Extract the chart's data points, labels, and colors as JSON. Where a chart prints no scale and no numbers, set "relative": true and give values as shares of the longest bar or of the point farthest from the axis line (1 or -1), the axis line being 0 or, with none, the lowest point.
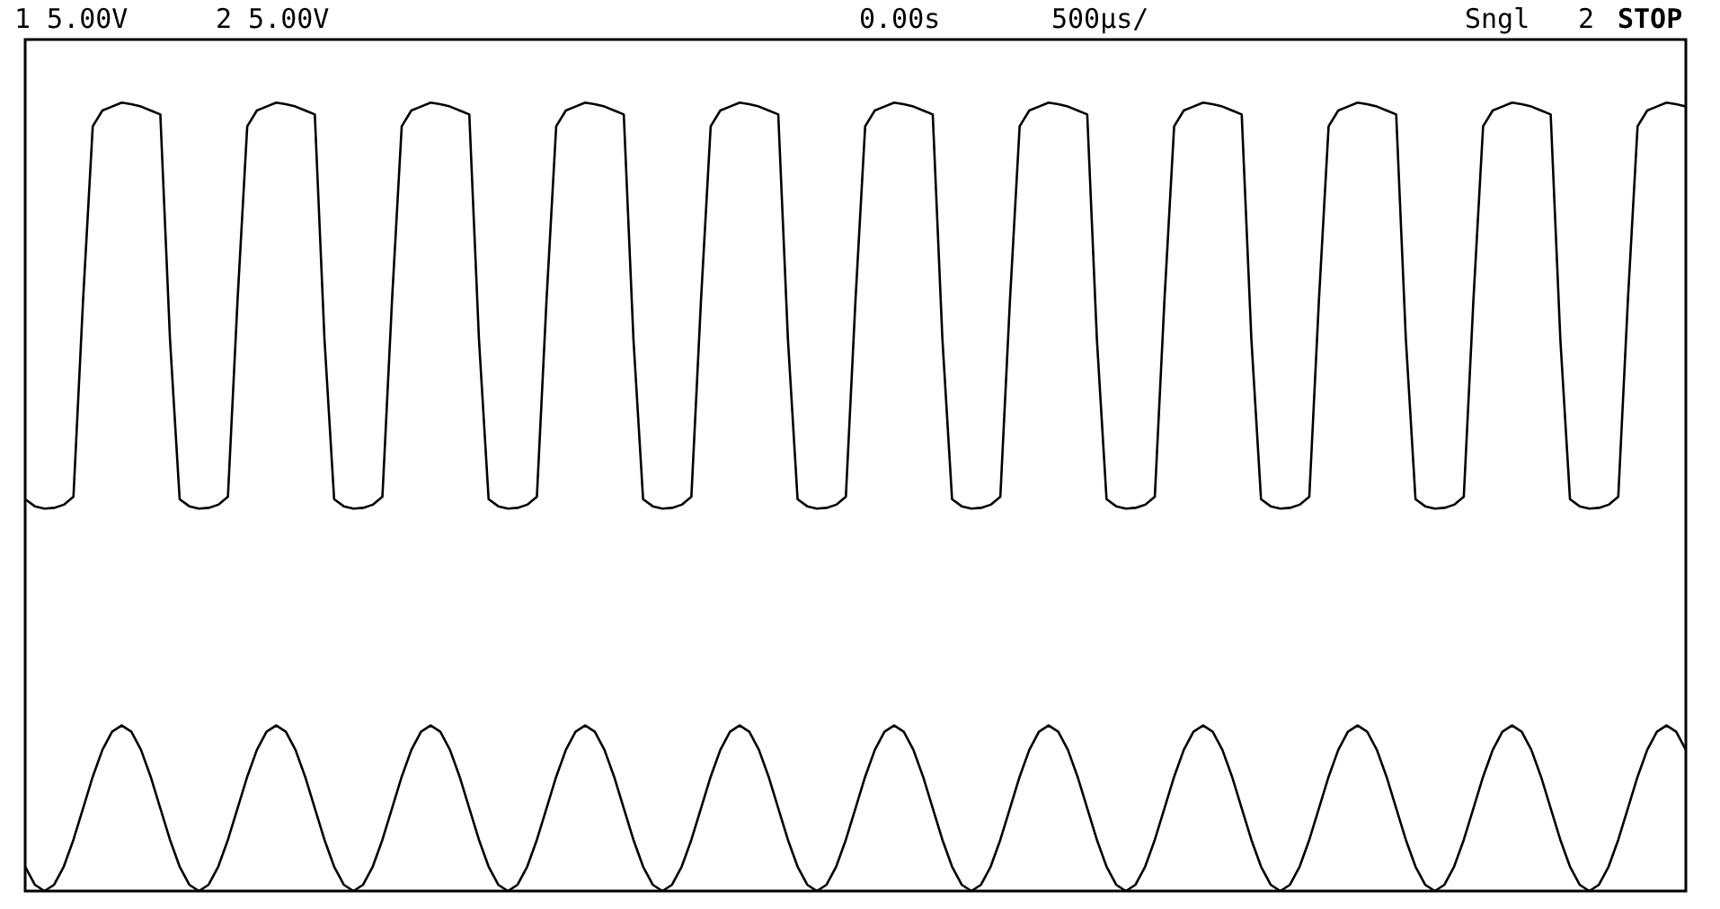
{
  "chart_data": {
    "type": "line",
    "relative": true,
    "marker": "none",
    "line_style": "solid",
    "annotations": [
      "1 5.00V",
      "2 5.00V",
      "0.00s",
      "500µs/",
      "Sngl",
      "2",
      "STOP"
    ],
    "categories": [
      null,
      null,
      null,
      null,
      null,
      null,
      null,
      null,
      null,
      null,
      null,
      null,
      null,
      null,
      null,
      null,
      null,
      null,
      null,
      null,
      null,
      null,
      null,
      null,
      null,
      null,
      null,
      null,
      null,
      null,
      null,
      null,
      null,
      null,
      null,
      null,
      null,
      null,
      null,
      null,
      null,
      null,
      null,
      null,
      null,
      null,
      null,
      null,
      null,
      null,
      null,
      null,
      null,
      null,
      null,
      null,
      null,
      null,
      null,
      null,
      null,
      null,
      null,
      null,
      null,
      null,
      null,
      null,
      null,
      null,
      null,
      null,
      null,
      null,
      null,
      null,
      null,
      null,
      null,
      null,
      null,
      null,
      null,
      null,
      null,
      null,
      null,
      null,
      null,
      null,
      null,
      null,
      null,
      null,
      null,
      null,
      null,
      null,
      null,
      null,
      null,
      null,
      null,
      null,
      null,
      null,
      null,
      null,
      null,
      null,
      null,
      null,
      null,
      null,
      null,
      null,
      null,
      null,
      null,
      null,
      null,
      null,
      null,
      null,
      null,
      null,
      null,
      null,
      null,
      null,
      null,
      null,
      null,
      null,
      null,
      null,
      null,
      null,
      null,
      null,
      null,
      null,
      null,
      null,
      null,
      null,
      null,
      null,
      null,
      null,
      null,
      null,
      null,
      null,
      null,
      null,
      null,
      null,
      null,
      null,
      null,
      null,
      null,
      null,
      null,
      null,
      null,
      null,
      null,
      null,
      null,
      null,
      null
    ],
    "series": [
      {
        "color": "#000000",
        "values": [
          0.497,
          0.488,
          0.485,
          0.486,
          0.49,
          0.5,
          0.75,
          0.97,
          0.99,
          0.995,
          1.0,
          0.998,
          0.995,
          0.99,
          0.985,
          0.7,
          0.497,
          0.488,
          0.485,
          0.486,
          0.49,
          0.5,
          0.75,
          0.97,
          0.99,
          0.995,
          1.0,
          0.998,
          0.995,
          0.99,
          0.985,
          0.7,
          0.497,
          0.488,
          0.485,
          0.486,
          0.49,
          0.5,
          0.75,
          0.97,
          0.99,
          0.995,
          1.0,
          0.998,
          0.995,
          0.99,
          0.985,
          0.7,
          0.497,
          0.488,
          0.485,
          0.486,
          0.49,
          0.5,
          0.75,
          0.97,
          0.99,
          0.995,
          1.0,
          0.998,
          0.995,
          0.99,
          0.985,
          0.7,
          0.497,
          0.488,
          0.485,
          0.486,
          0.49,
          0.5,
          0.75,
          0.97,
          0.99,
          0.995,
          1.0,
          0.998,
          0.995,
          0.99,
          0.985,
          0.7,
          0.497,
          0.488,
          0.485,
          0.486,
          0.49,
          0.5,
          0.75,
          0.97,
          0.99,
          0.995,
          1.0,
          0.998,
          0.995,
          0.99,
          0.985,
          0.7,
          0.497,
          0.488,
          0.485,
          0.486,
          0.49,
          0.5,
          0.75,
          0.97,
          0.99,
          0.995,
          1.0,
          0.998,
          0.995,
          0.99,
          0.985,
          0.7,
          0.497,
          0.488,
          0.485,
          0.486,
          0.49,
          0.5,
          0.75,
          0.97,
          0.99,
          0.995,
          1.0,
          0.998,
          0.995,
          0.99,
          0.985,
          0.7,
          0.497,
          0.488,
          0.485,
          0.486,
          0.49,
          0.5,
          0.75,
          0.97,
          0.99,
          0.995,
          1.0,
          0.998,
          0.995,
          0.99,
          0.985,
          0.7,
          0.497,
          0.488,
          0.485,
          0.486,
          0.49,
          0.5,
          0.75,
          0.97,
          0.99,
          0.995,
          1.0,
          0.998,
          0.995,
          0.99,
          0.985,
          0.7,
          0.497,
          0.488,
          0.485,
          0.486,
          0.49,
          0.5,
          0.75,
          0.97,
          0.99,
          0.995,
          1.0,
          0.998,
          0.995
        ]
      },
      {
        "color": "#000000",
        "values": [
          0.031,
          0.008,
          0,
          0.008,
          0.031,
          0.065,
          0.105,
          0.145,
          0.179,
          0.202,
          0.21,
          0.202,
          0.179,
          0.145,
          0.105,
          0.065,
          0.031,
          0.008,
          0,
          0.008,
          0.031,
          0.065,
          0.105,
          0.145,
          0.179,
          0.202,
          0.21,
          0.202,
          0.179,
          0.145,
          0.105,
          0.065,
          0.031,
          0.008,
          0,
          0.008,
          0.031,
          0.065,
          0.105,
          0.145,
          0.179,
          0.202,
          0.21,
          0.202,
          0.179,
          0.145,
          0.105,
          0.065,
          0.031,
          0.008,
          0,
          0.008,
          0.031,
          0.065,
          0.105,
          0.145,
          0.179,
          0.202,
          0.21,
          0.202,
          0.179,
          0.145,
          0.105,
          0.065,
          0.031,
          0.008,
          0,
          0.008,
          0.031,
          0.065,
          0.105,
          0.145,
          0.179,
          0.202,
          0.21,
          0.202,
          0.179,
          0.145,
          0.105,
          0.065,
          0.031,
          0.008,
          0,
          0.008,
          0.031,
          0.065,
          0.105,
          0.145,
          0.179,
          0.202,
          0.21,
          0.202,
          0.179,
          0.145,
          0.105,
          0.065,
          0.031,
          0.008,
          0,
          0.008,
          0.031,
          0.065,
          0.105,
          0.145,
          0.179,
          0.202,
          0.21,
          0.202,
          0.179,
          0.145,
          0.105,
          0.065,
          0.031,
          0.008,
          0,
          0.008,
          0.031,
          0.065,
          0.105,
          0.145,
          0.179,
          0.202,
          0.21,
          0.202,
          0.179,
          0.145,
          0.105,
          0.065,
          0.031,
          0.008,
          0,
          0.008,
          0.031,
          0.065,
          0.105,
          0.145,
          0.179,
          0.202,
          0.21,
          0.202,
          0.179,
          0.145,
          0.105,
          0.065,
          0.031,
          0.008,
          0,
          0.008,
          0.031,
          0.065,
          0.105,
          0.145,
          0.179,
          0.202,
          0.21,
          0.202,
          0.179,
          0.145,
          0.105,
          0.065,
          0.031,
          0.008,
          0,
          0.008,
          0.031,
          0.065,
          0.105,
          0.145,
          0.179,
          0.202,
          0.21,
          0.202,
          0.179
        ]
      }
    ]
  }
}
